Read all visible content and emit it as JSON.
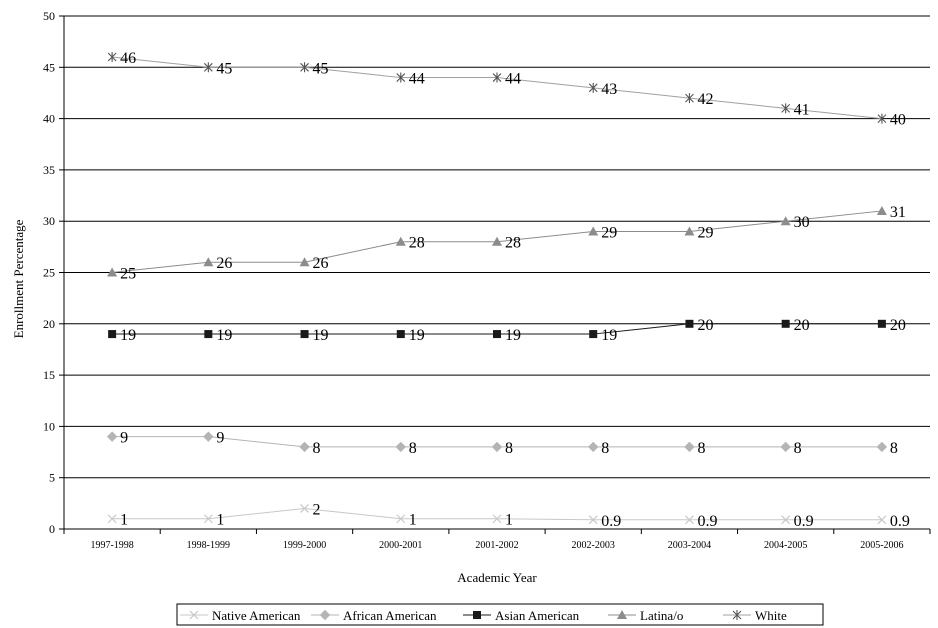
{
  "chart_data": {
    "type": "line",
    "title": "",
    "xlabel": "Academic Year",
    "ylabel": "Enrollment Percentage",
    "ylim": [
      0,
      50
    ],
    "yticks": [
      "0",
      "5",
      "10",
      "15",
      "20",
      "25",
      "30",
      "35",
      "40",
      "45",
      "50"
    ],
    "grid": "horizontal",
    "legend": "bottom",
    "categories": [
      "1997-1998",
      "1998-1999",
      "1999-2000",
      "2000-2001",
      "2001-2002",
      "2002-2003",
      "2003-2004",
      "2004-2005",
      "2005-2006"
    ],
    "series": [
      {
        "name": "Native American",
        "marker": "x",
        "color": "#c8c8c8",
        "values": [
          1,
          1,
          2,
          1,
          1,
          0.9,
          0.9,
          0.9,
          0.9
        ],
        "labels": [
          "1",
          "1",
          "2",
          "1",
          "1",
          "0.9",
          "0.9",
          "0.9",
          "0.9"
        ]
      },
      {
        "name": "African American",
        "marker": "diamond",
        "color": "#b4b4b4",
        "values": [
          9,
          9,
          8,
          8,
          8,
          8,
          8,
          8,
          8
        ],
        "labels": [
          "9",
          "9",
          "8",
          "8",
          "8",
          "8",
          "8",
          "8",
          "8"
        ]
      },
      {
        "name": "Asian American",
        "marker": "square",
        "color": "#1a1a1a",
        "values": [
          19,
          19,
          19,
          19,
          19,
          19,
          20,
          20,
          20
        ],
        "labels": [
          "19",
          "19",
          "19",
          "19",
          "19",
          "19",
          "20",
          "20",
          "20"
        ]
      },
      {
        "name": "Latina/o",
        "marker": "triangle",
        "color": "#8c8c8c",
        "values": [
          25,
          26,
          26,
          28,
          28,
          29,
          29,
          30,
          31
        ],
        "labels": [
          "25",
          "26",
          "26",
          "28",
          "28",
          "29",
          "29",
          "30",
          "31"
        ]
      },
      {
        "name": "White",
        "marker": "star",
        "color": "#a0a0a0",
        "values": [
          46,
          45,
          45,
          44,
          44,
          43,
          42,
          41,
          40
        ],
        "labels": [
          "46",
          "45",
          "45",
          "44",
          "44",
          "43",
          "42",
          "41",
          "40"
        ]
      }
    ]
  }
}
